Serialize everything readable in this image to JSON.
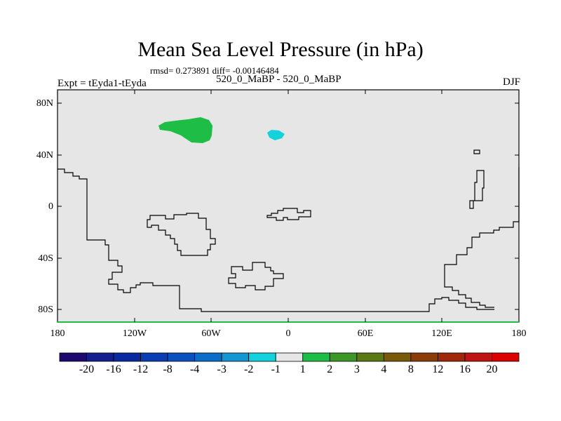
{
  "title": "Mean Sea Level Pressure (in hPa)",
  "stats_line": "rmsd= 0.273891 diff= -0.00146484",
  "experiment": "Expt = tEyda1-tEyda",
  "subtitle": "520_0_MaBP - 520_0_MaBP",
  "season": "DJF",
  "latitude_labels": [
    "80N",
    "40N",
    "0",
    "40S",
    "80S"
  ],
  "longitude_labels": [
    "180",
    "120W",
    "60W",
    "0",
    "60E",
    "120E",
    "180"
  ],
  "colorbar": {
    "labels": [
      "-20",
      "-16",
      "-12",
      "-8",
      "-4",
      "-3",
      "-2",
      "-1",
      "1",
      "2",
      "3",
      "4",
      "8",
      "12",
      "16",
      "20"
    ],
    "colors": [
      "#1e0a6e",
      "#141e8c",
      "#0a28a0",
      "#0a3cb4",
      "#0a50be",
      "#0a6ec8",
      "#1496d2",
      "#14d2dc",
      "#e6e6e6",
      "#1ebe46",
      "#3c9628",
      "#5a7814",
      "#785a0a",
      "#8c3c0a",
      "#a0280a",
      "#be1414",
      "#dc0000"
    ]
  },
  "colors": {
    "land_fill": "#e6e6e6",
    "positive_anomaly": "#1ebe46",
    "negative_anomaly": "#14d2dc",
    "coastline": "#000000"
  }
}
